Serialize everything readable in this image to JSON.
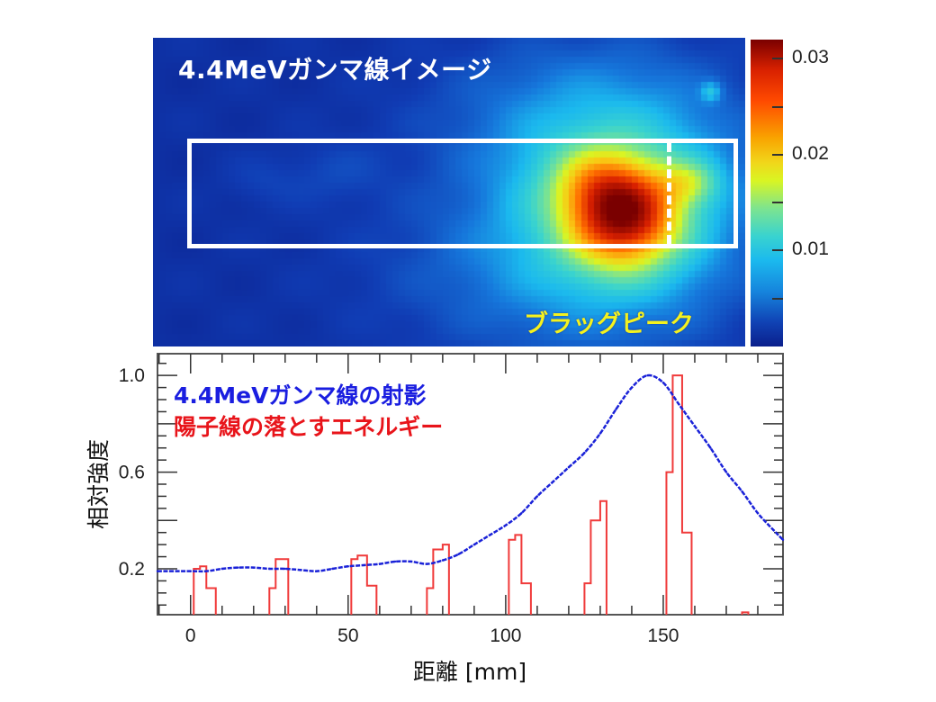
{
  "top_panel": {
    "title": "4.4MeVガンマ線イメージ",
    "annotation": "ブラッグピーク",
    "colorbar": {
      "ticks": [
        "0.03",
        "0.02",
        "0.01"
      ],
      "tick_values": [
        0.03,
        0.02,
        0.01
      ],
      "range": [
        0.0,
        0.032
      ],
      "colormap": "jet"
    },
    "hotspot": {
      "description": "peak intensity near x≈140 mm inside region of interest"
    }
  },
  "chart_data": [
    {
      "type": "heatmap",
      "title": "4.4MeVガンマ線イメージ",
      "annotation": "ブラッグピーク",
      "colorbar_ticks": [
        0.01,
        0.02,
        0.03
      ],
      "value_range": [
        0.0,
        0.032
      ],
      "peak_value": 0.031
    },
    {
      "type": "line",
      "title": "",
      "xlabel": "距離 [mm]",
      "ylabel": "相対強度",
      "xlim": [
        -10.5,
        188
      ],
      "ylim": [
        0.01,
        1.09
      ],
      "x_ticks": [
        0,
        50,
        100,
        150
      ],
      "x_tick_labels": [
        "0",
        "50",
        "100",
        "150"
      ],
      "y_ticks": [
        0.2,
        0.6,
        1.0
      ],
      "y_tick_labels": [
        "0.2",
        "0.6",
        "1.0"
      ],
      "legend": [
        {
          "label": "4.4MeVガンマ線の射影",
          "color": "#1a1ee0"
        },
        {
          "label": "陽子線の落とすエネルギー",
          "color": "#e8141a"
        }
      ],
      "legend_position": "top-left",
      "series": [
        {
          "name": "4.4MeVガンマ線の射影",
          "style": "line",
          "color": "#1a22d8",
          "x": [
            -10.5,
            0,
            5,
            10,
            15,
            20,
            25,
            30,
            35,
            40,
            45,
            50,
            55,
            60,
            65,
            70,
            75,
            80,
            85,
            90,
            95,
            100,
            105,
            110,
            115,
            120,
            125,
            130,
            135,
            140,
            145,
            150,
            155,
            160,
            165,
            170,
            175,
            180,
            185,
            188
          ],
          "y": [
            0.19,
            0.19,
            0.19,
            0.2,
            0.205,
            0.205,
            0.2,
            0.2,
            0.195,
            0.19,
            0.2,
            0.21,
            0.215,
            0.22,
            0.23,
            0.23,
            0.22,
            0.235,
            0.26,
            0.3,
            0.34,
            0.38,
            0.43,
            0.5,
            0.56,
            0.62,
            0.68,
            0.76,
            0.86,
            0.95,
            1.0,
            0.97,
            0.88,
            0.79,
            0.7,
            0.6,
            0.52,
            0.43,
            0.36,
            0.32
          ]
        },
        {
          "name": "陽子線の落とすエネルギー",
          "style": "step-histogram",
          "color": "#f03a3a",
          "bins": [
            {
              "x0": 1,
              "x1": 3,
              "y": 0.2
            },
            {
              "x0": 3,
              "x1": 5,
              "y": 0.21
            },
            {
              "x0": 5,
              "x1": 8,
              "y": 0.12
            },
            {
              "x0": 25,
              "x1": 27,
              "y": 0.12
            },
            {
              "x0": 27,
              "x1": 31,
              "y": 0.24
            },
            {
              "x0": 51,
              "x1": 53,
              "y": 0.24
            },
            {
              "x0": 53,
              "x1": 56,
              "y": 0.255
            },
            {
              "x0": 56,
              "x1": 59,
              "y": 0.13
            },
            {
              "x0": 75,
              "x1": 77,
              "y": 0.12
            },
            {
              "x0": 77,
              "x1": 80,
              "y": 0.28
            },
            {
              "x0": 80,
              "x1": 82,
              "y": 0.3
            },
            {
              "x0": 101,
              "x1": 103,
              "y": 0.32
            },
            {
              "x0": 103,
              "x1": 105,
              "y": 0.34
            },
            {
              "x0": 105,
              "x1": 108,
              "y": 0.14
            },
            {
              "x0": 125,
              "x1": 127,
              "y": 0.14
            },
            {
              "x0": 127,
              "x1": 130,
              "y": 0.4
            },
            {
              "x0": 130,
              "x1": 132,
              "y": 0.48
            },
            {
              "x0": 151,
              "x1": 153,
              "y": 0.6
            },
            {
              "x0": 153,
              "x1": 156,
              "y": 1.0
            },
            {
              "x0": 156,
              "x1": 159,
              "y": 0.35
            },
            {
              "x0": 175,
              "x1": 177,
              "y": 0.02
            }
          ]
        }
      ]
    }
  ]
}
